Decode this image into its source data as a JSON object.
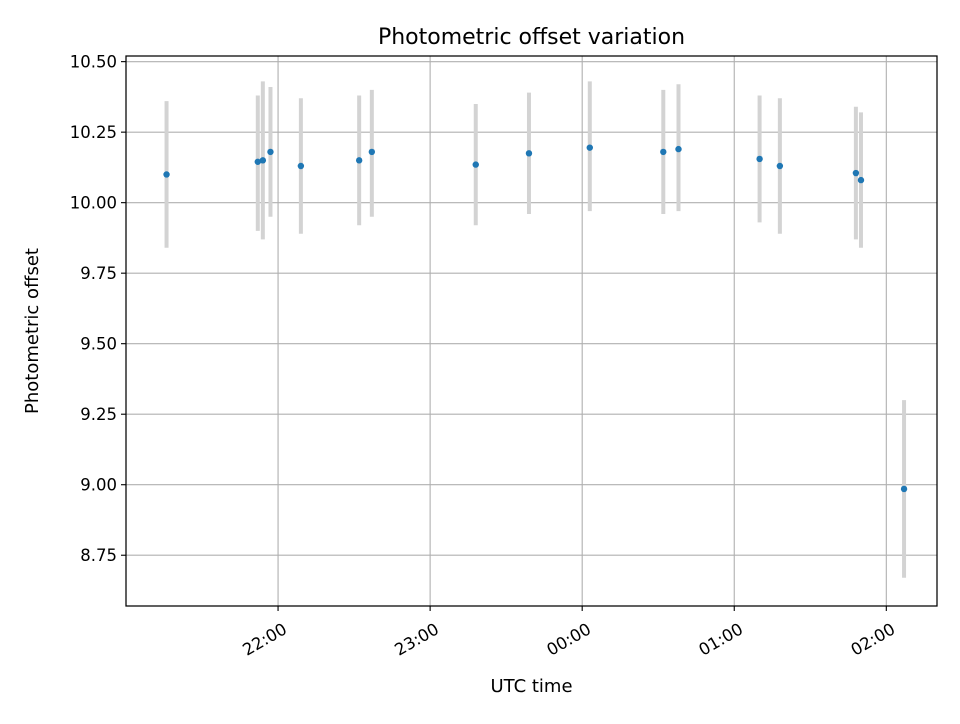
{
  "chart_data": {
    "type": "scatter",
    "title": "Photometric offset variation",
    "xlabel": "UTC time",
    "ylabel": "Photometric offset",
    "ylim": [
      8.57,
      10.52
    ],
    "xlim": [
      "21:00",
      "02:20"
    ],
    "yticks": [
      "8.75",
      "9.00",
      "9.25",
      "9.50",
      "9.75",
      "10.00",
      "10.25",
      "10.50"
    ],
    "xticks": [
      "22:00",
      "23:00",
      "00:00",
      "01:00",
      "02:00"
    ],
    "grid": true,
    "legend": "none",
    "series": [
      {
        "points": [
          {
            "x": "21:16",
            "y": 10.1,
            "low": 9.84,
            "high": 10.36
          },
          {
            "x": "21:52",
            "y": 10.145,
            "low": 9.9,
            "high": 10.38
          },
          {
            "x": "21:54",
            "y": 10.15,
            "low": 9.87,
            "high": 10.43
          },
          {
            "x": "21:57",
            "y": 10.18,
            "low": 9.95,
            "high": 10.41
          },
          {
            "x": "22:09",
            "y": 10.13,
            "low": 9.89,
            "high": 10.37
          },
          {
            "x": "22:32",
            "y": 10.15,
            "low": 9.92,
            "high": 10.38
          },
          {
            "x": "22:37",
            "y": 10.18,
            "low": 9.95,
            "high": 10.4
          },
          {
            "x": "23:18",
            "y": 10.135,
            "low": 9.92,
            "high": 10.35
          },
          {
            "x": "23:39",
            "y": 10.175,
            "low": 9.96,
            "high": 10.39
          },
          {
            "x": "00:03",
            "y": 10.195,
            "low": 9.97,
            "high": 10.43
          },
          {
            "x": "00:32",
            "y": 10.18,
            "low": 9.96,
            "high": 10.4
          },
          {
            "x": "00:38",
            "y": 10.19,
            "low": 9.97,
            "high": 10.42
          },
          {
            "x": "01:10",
            "y": 10.155,
            "low": 9.93,
            "high": 10.38
          },
          {
            "x": "01:18",
            "y": 10.13,
            "low": 9.89,
            "high": 10.37
          },
          {
            "x": "01:48",
            "y": 10.105,
            "low": 9.87,
            "high": 10.34
          },
          {
            "x": "01:50",
            "y": 10.08,
            "low": 9.84,
            "high": 10.32
          },
          {
            "x": "02:07",
            "y": 8.985,
            "low": 8.67,
            "high": 9.3
          }
        ]
      }
    ],
    "colors": {
      "marker": "#1f77b4",
      "errorbar": "#d3d3d3",
      "grid": "#b0b0b0",
      "axis": "#000000"
    }
  }
}
